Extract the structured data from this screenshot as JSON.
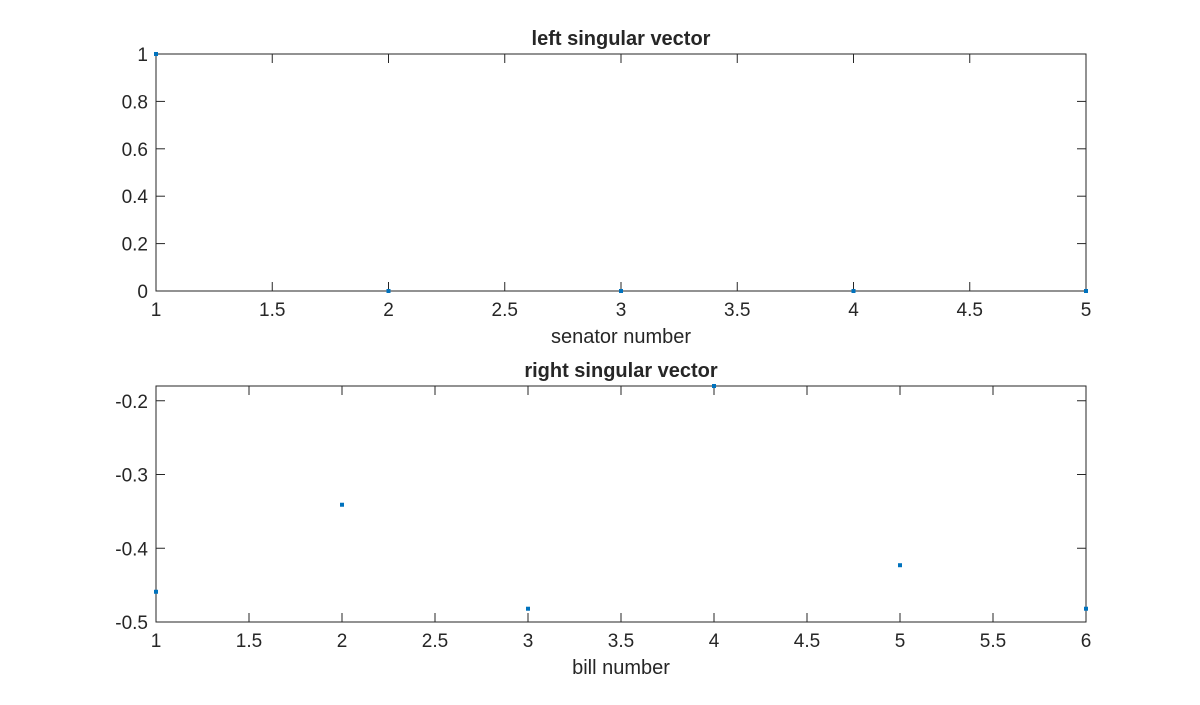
{
  "chart_data": [
    {
      "type": "scatter",
      "title": "left singular vector",
      "xlabel": "senator number",
      "ylabel": "",
      "xlim": [
        1,
        5
      ],
      "ylim": [
        0,
        1
      ],
      "xticks": [
        1,
        1.5,
        2,
        2.5,
        3,
        3.5,
        4,
        4.5,
        5
      ],
      "xticklabels": [
        "1",
        "1.5",
        "2",
        "2.5",
        "3",
        "3.5",
        "4",
        "4.5",
        "5"
      ],
      "yticks": [
        0,
        0.2,
        0.4,
        0.6,
        0.8,
        1
      ],
      "yticklabels": [
        "0",
        "0.2",
        "0.4",
        "0.6",
        "0.8",
        "1"
      ],
      "grid": false,
      "series": [
        {
          "x": [
            1,
            2,
            3,
            4,
            5
          ],
          "y": [
            1.0,
            0.0,
            0.0,
            0.0,
            0.0
          ]
        }
      ]
    },
    {
      "type": "scatter",
      "title": "right singular vector",
      "xlabel": "bill number",
      "ylabel": "",
      "xlim": [
        1,
        6
      ],
      "ylim": [
        -0.5,
        -0.18
      ],
      "xticks": [
        1,
        1.5,
        2,
        2.5,
        3,
        3.5,
        4,
        4.5,
        5,
        5.5,
        6
      ],
      "xticklabels": [
        "1",
        "1.5",
        "2",
        "2.5",
        "3",
        "3.5",
        "4",
        "4.5",
        "5",
        "5.5",
        "6"
      ],
      "yticks": [
        -0.5,
        -0.4,
        -0.3,
        -0.2
      ],
      "yticklabels": [
        "-0.5",
        "-0.4",
        "-0.3",
        "-0.2"
      ],
      "grid": false,
      "series": [
        {
          "x": [
            1,
            2,
            3,
            4,
            5,
            6
          ],
          "y": [
            -0.459,
            -0.341,
            -0.482,
            -0.18,
            -0.423,
            -0.482
          ]
        }
      ]
    }
  ],
  "colors": {
    "marker": "#0072bd",
    "axis": "#262626",
    "background": "#ffffff"
  }
}
